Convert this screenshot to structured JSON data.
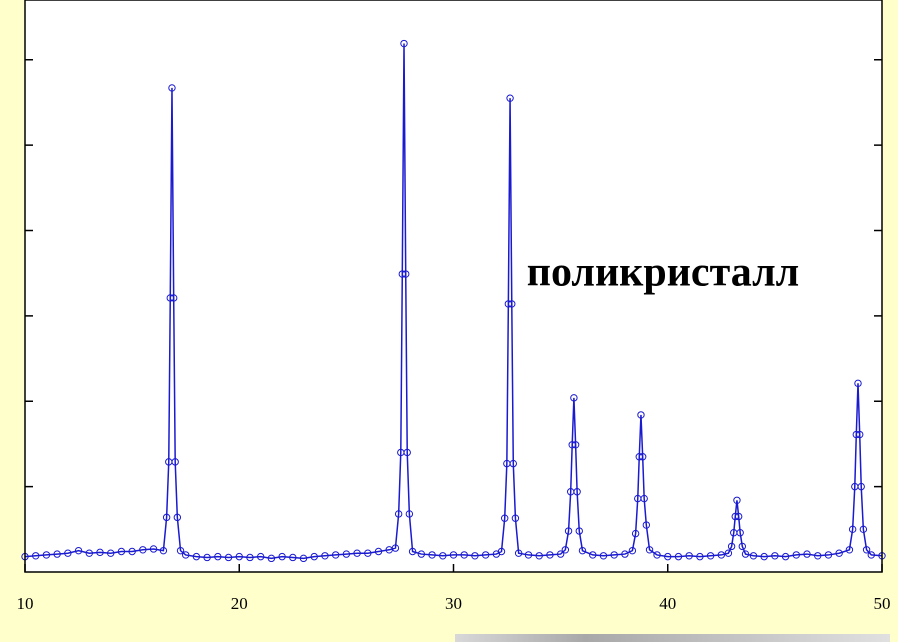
{
  "chart_data": {
    "type": "line",
    "annotation": "поликристалл",
    "color": "#1a1ad0",
    "xlim": [
      10,
      50
    ],
    "xticks": [
      10,
      20,
      30,
      40,
      50
    ],
    "ylim": [
      0,
      6.7
    ],
    "yticks": [
      1,
      2,
      3,
      4,
      5,
      6
    ],
    "x": [
      10,
      10.5,
      11,
      11.5,
      12,
      12.5,
      13,
      13.5,
      14,
      14.5,
      15,
      15.5,
      16,
      16.46,
      16.61,
      16.71,
      16.78,
      16.86,
      16.94,
      17.01,
      17.11,
      17.26,
      17.5,
      18,
      18.5,
      19,
      19.5,
      20,
      20.5,
      21,
      21.5,
      22,
      22.5,
      23,
      23.5,
      24,
      24.5,
      25,
      25.5,
      26,
      26.5,
      27,
      27.29,
      27.44,
      27.54,
      27.61,
      27.69,
      27.77,
      27.84,
      27.94,
      28.09,
      28.5,
      29,
      29.5,
      30,
      30.5,
      31,
      31.5,
      32,
      32.24,
      32.39,
      32.49,
      32.56,
      32.64,
      32.72,
      32.79,
      32.89,
      33.04,
      33.5,
      34,
      34.5,
      35,
      35.22,
      35.37,
      35.47,
      35.54,
      35.62,
      35.7,
      35.77,
      35.87,
      36.02,
      36.5,
      37,
      37.5,
      38,
      38.35,
      38.5,
      38.6,
      38.67,
      38.75,
      38.83,
      38.9,
      39,
      39.15,
      39.5,
      40,
      40.5,
      41,
      41.5,
      42,
      42.5,
      42.83,
      42.98,
      43.08,
      43.15,
      43.23,
      43.31,
      43.38,
      43.48,
      43.63,
      44,
      44.5,
      45,
      45.5,
      46,
      46.5,
      47,
      47.5,
      48,
      48.48,
      48.63,
      48.73,
      48.8,
      48.88,
      48.96,
      49.03,
      49.13,
      49.28,
      49.5,
      50
    ],
    "values": [
      0.18,
      0.19,
      0.2,
      0.21,
      0.22,
      0.25,
      0.22,
      0.23,
      0.22,
      0.24,
      0.24,
      0.26,
      0.27,
      0.25,
      0.64,
      1.29,
      3.21,
      5.67,
      3.21,
      1.29,
      0.64,
      0.25,
      0.2,
      0.18,
      0.17,
      0.18,
      0.17,
      0.18,
      0.17,
      0.18,
      0.16,
      0.18,
      0.17,
      0.16,
      0.18,
      0.19,
      0.2,
      0.21,
      0.22,
      0.22,
      0.24,
      0.26,
      0.28,
      0.68,
      1.4,
      3.49,
      6.19,
      3.49,
      1.4,
      0.68,
      0.24,
      0.21,
      0.2,
      0.19,
      0.2,
      0.2,
      0.19,
      0.2,
      0.21,
      0.24,
      0.63,
      1.27,
      3.14,
      5.55,
      3.14,
      1.27,
      0.63,
      0.22,
      0.2,
      0.19,
      0.2,
      0.21,
      0.26,
      0.48,
      0.94,
      1.49,
      2.04,
      1.49,
      0.94,
      0.48,
      0.25,
      0.2,
      0.19,
      0.2,
      0.21,
      0.25,
      0.45,
      0.86,
      1.35,
      1.84,
      1.35,
      0.86,
      0.55,
      0.26,
      0.2,
      0.18,
      0.18,
      0.19,
      0.18,
      0.19,
      0.2,
      0.22,
      0.3,
      0.46,
      0.65,
      0.84,
      0.65,
      0.46,
      0.3,
      0.21,
      0.19,
      0.18,
      0.19,
      0.18,
      0.2,
      0.21,
      0.19,
      0.2,
      0.22,
      0.26,
      0.5,
      1.0,
      1.61,
      2.21,
      1.61,
      1.0,
      0.5,
      0.26,
      0.2,
      0.19
    ]
  }
}
